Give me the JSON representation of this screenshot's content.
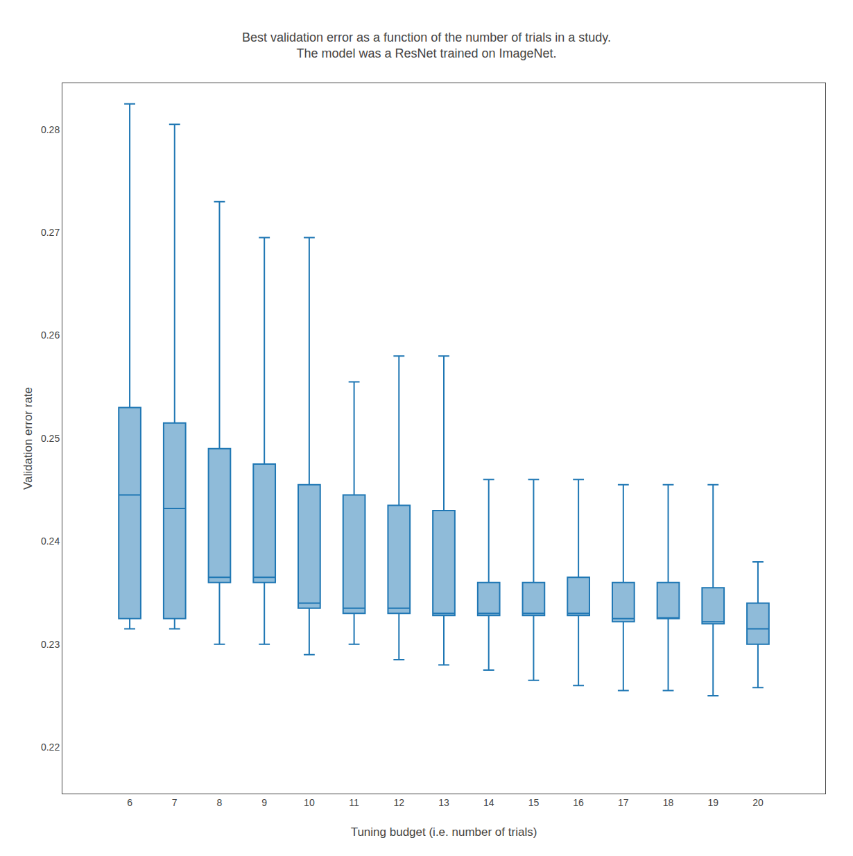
{
  "chart_data": {
    "type": "box",
    "title": "Best validation error as a function of the number of trials in a study.\nThe model was a ResNet trained on ImageNet.",
    "xlabel": "Tuning budget (i.e. number of trials)",
    "ylabel": "Validation error rate",
    "x": [
      6,
      7,
      8,
      9,
      10,
      11,
      12,
      13,
      14,
      15,
      16,
      17,
      18,
      19,
      20
    ],
    "whislo": [
      0.2315,
      0.2315,
      0.23,
      0.23,
      0.229,
      0.23,
      0.2285,
      0.228,
      0.2275,
      0.2265,
      0.226,
      0.2255,
      0.2255,
      0.225,
      0.2258
    ],
    "q1": [
      0.2325,
      0.2325,
      0.236,
      0.236,
      0.2335,
      0.233,
      0.233,
      0.2328,
      0.2328,
      0.2328,
      0.2328,
      0.2322,
      0.2325,
      0.232,
      0.23
    ],
    "median": [
      0.2445,
      0.2432,
      0.2365,
      0.2365,
      0.234,
      0.2335,
      0.2335,
      0.233,
      0.233,
      0.233,
      0.233,
      0.2325,
      0.2325,
      0.2322,
      0.2315
    ],
    "q3": [
      0.253,
      0.2515,
      0.249,
      0.2475,
      0.2455,
      0.2445,
      0.2435,
      0.243,
      0.236,
      0.236,
      0.2365,
      0.236,
      0.236,
      0.2355,
      0.234
    ],
    "whishi": [
      0.2825,
      0.2805,
      0.273,
      0.2695,
      0.2695,
      0.2555,
      0.258,
      0.258,
      0.246,
      0.246,
      0.246,
      0.2455,
      0.2455,
      0.2455,
      0.238
    ],
    "xlim": [
      4.5,
      21.5
    ],
    "xticks": [
      6,
      7,
      8,
      9,
      10,
      11,
      12,
      13,
      14,
      15,
      16,
      17,
      18,
      19,
      20
    ],
    "ylim": [
      0.2155,
      0.2845
    ],
    "yticks": [
      0.22,
      0.23,
      0.24,
      0.25,
      0.26,
      0.27,
      0.28
    ],
    "grid": false
  }
}
